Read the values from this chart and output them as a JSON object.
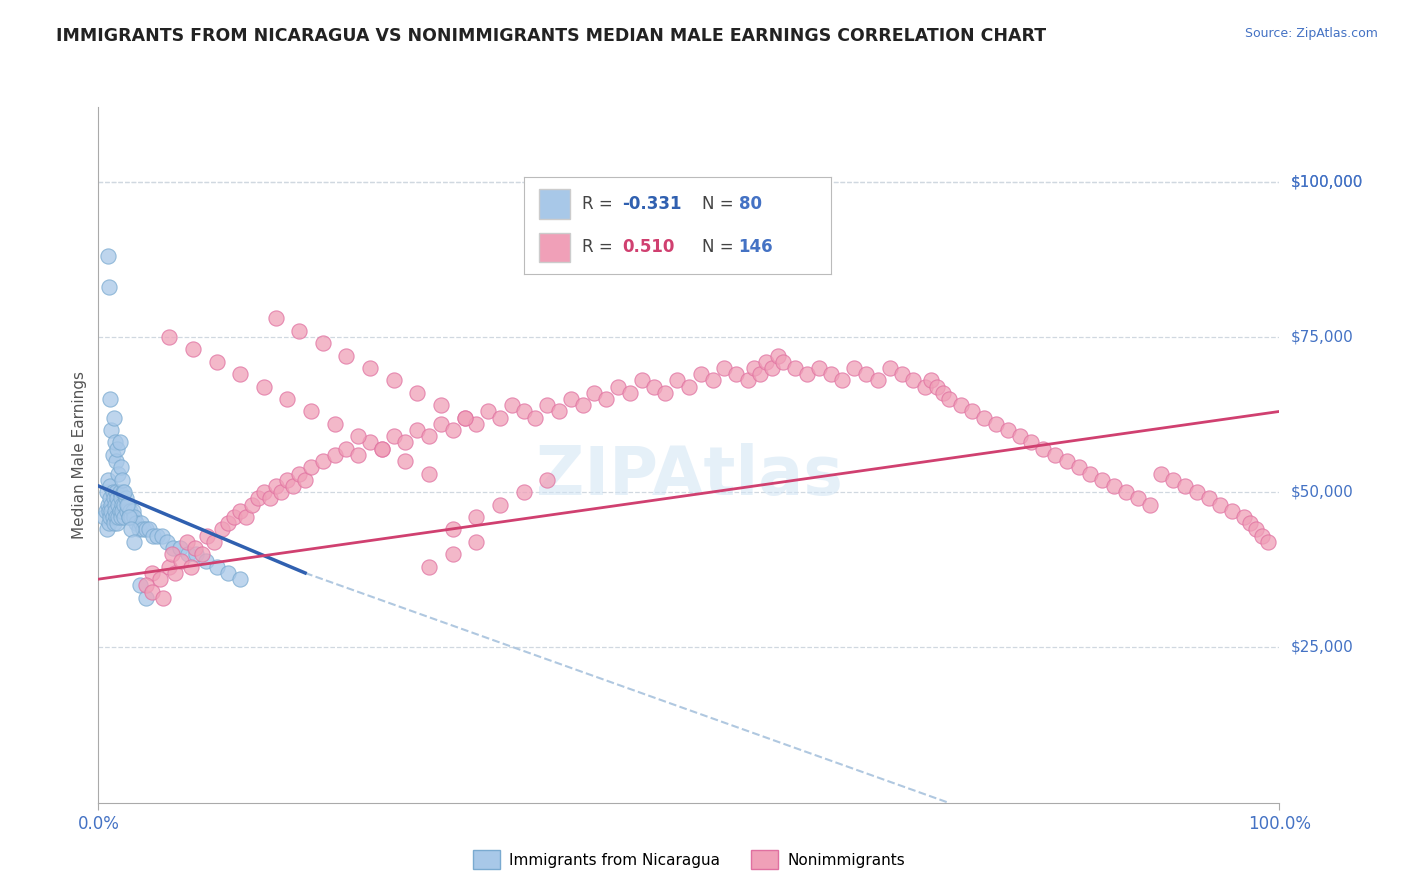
{
  "title": "IMMIGRANTS FROM NICARAGUA VS NONIMMIGRANTS MEDIAN MALE EARNINGS CORRELATION CHART",
  "source_text": "Source: ZipAtlas.com",
  "ylabel": "Median Male Earnings",
  "ytick_values": [
    25000,
    50000,
    75000,
    100000
  ],
  "ytick_labels": [
    "$25,000",
    "$50,000",
    "$75,000",
    "$100,000"
  ],
  "ylim": [
    0,
    112000
  ],
  "xlim": [
    0.0,
    1.0
  ],
  "blue_color": "#a8c8e8",
  "pink_color": "#f0a0b8",
  "blue_edge_color": "#7aaad0",
  "pink_edge_color": "#e070a0",
  "blue_line_color": "#3060b0",
  "pink_line_color": "#d04070",
  "dash_line_color": "#b0c8e0",
  "title_color": "#222222",
  "axis_label_color": "#4472c4",
  "background_color": "#ffffff",
  "grid_color": "#d0d8e0",
  "watermark_color": "#d0e4f4",
  "blue_scatter_x": [
    0.005,
    0.006,
    0.007,
    0.007,
    0.008,
    0.008,
    0.009,
    0.009,
    0.01,
    0.01,
    0.01,
    0.011,
    0.011,
    0.012,
    0.012,
    0.013,
    0.013,
    0.014,
    0.014,
    0.015,
    0.015,
    0.016,
    0.016,
    0.017,
    0.017,
    0.018,
    0.018,
    0.019,
    0.019,
    0.02,
    0.02,
    0.021,
    0.022,
    0.022,
    0.023,
    0.024,
    0.025,
    0.026,
    0.027,
    0.028,
    0.029,
    0.03,
    0.032,
    0.034,
    0.036,
    0.038,
    0.04,
    0.043,
    0.046,
    0.05,
    0.054,
    0.058,
    0.063,
    0.069,
    0.076,
    0.083,
    0.091,
    0.1,
    0.11,
    0.12,
    0.008,
    0.009,
    0.01,
    0.011,
    0.012,
    0.013,
    0.014,
    0.015,
    0.016,
    0.017,
    0.018,
    0.019,
    0.02,
    0.022,
    0.024,
    0.026,
    0.028,
    0.03,
    0.035,
    0.04
  ],
  "blue_scatter_y": [
    46000,
    47000,
    50000,
    44000,
    48000,
    52000,
    47000,
    45000,
    49000,
    51000,
    46000,
    48000,
    47000,
    50000,
    46000,
    49000,
    45000,
    48000,
    47000,
    50000,
    46000,
    49000,
    45000,
    48000,
    46000,
    50000,
    47000,
    49000,
    46000,
    48000,
    47000,
    50000,
    48000,
    46000,
    49000,
    47000,
    48000,
    46000,
    47000,
    46000,
    47000,
    46000,
    45000,
    44000,
    45000,
    44000,
    44000,
    44000,
    43000,
    43000,
    43000,
    42000,
    41000,
    41000,
    40000,
    40000,
    39000,
    38000,
    37000,
    36000,
    88000,
    83000,
    65000,
    60000,
    56000,
    62000,
    58000,
    55000,
    57000,
    53000,
    58000,
    54000,
    52000,
    50000,
    48000,
    46000,
    44000,
    42000,
    35000,
    33000
  ],
  "pink_scatter_x": [
    0.045,
    0.052,
    0.06,
    0.062,
    0.065,
    0.07,
    0.075,
    0.078,
    0.082,
    0.088,
    0.092,
    0.098,
    0.105,
    0.11,
    0.115,
    0.12,
    0.125,
    0.13,
    0.135,
    0.14,
    0.145,
    0.15,
    0.155,
    0.16,
    0.165,
    0.17,
    0.175,
    0.18,
    0.19,
    0.2,
    0.21,
    0.22,
    0.23,
    0.24,
    0.25,
    0.26,
    0.27,
    0.28,
    0.29,
    0.3,
    0.31,
    0.32,
    0.33,
    0.34,
    0.35,
    0.36,
    0.37,
    0.38,
    0.39,
    0.4,
    0.41,
    0.42,
    0.43,
    0.44,
    0.45,
    0.46,
    0.47,
    0.48,
    0.49,
    0.5,
    0.51,
    0.52,
    0.53,
    0.54,
    0.55,
    0.555,
    0.56,
    0.565,
    0.57,
    0.575,
    0.58,
    0.59,
    0.6,
    0.61,
    0.62,
    0.63,
    0.64,
    0.65,
    0.66,
    0.67,
    0.68,
    0.69,
    0.7,
    0.705,
    0.71,
    0.715,
    0.72,
    0.73,
    0.74,
    0.75,
    0.76,
    0.77,
    0.78,
    0.79,
    0.8,
    0.81,
    0.82,
    0.83,
    0.84,
    0.85,
    0.86,
    0.87,
    0.88,
    0.89,
    0.9,
    0.91,
    0.92,
    0.93,
    0.94,
    0.95,
    0.96,
    0.97,
    0.975,
    0.98,
    0.985,
    0.99,
    0.06,
    0.08,
    0.1,
    0.12,
    0.14,
    0.16,
    0.18,
    0.2,
    0.22,
    0.24,
    0.26,
    0.28,
    0.15,
    0.17,
    0.19,
    0.21,
    0.23,
    0.25,
    0.27,
    0.29,
    0.31,
    0.04,
    0.045,
    0.055,
    0.3,
    0.32,
    0.34,
    0.36,
    0.38,
    0.28,
    0.3,
    0.32
  ],
  "pink_scatter_y": [
    37000,
    36000,
    38000,
    40000,
    37000,
    39000,
    42000,
    38000,
    41000,
    40000,
    43000,
    42000,
    44000,
    45000,
    46000,
    47000,
    46000,
    48000,
    49000,
    50000,
    49000,
    51000,
    50000,
    52000,
    51000,
    53000,
    52000,
    54000,
    55000,
    56000,
    57000,
    56000,
    58000,
    57000,
    59000,
    58000,
    60000,
    59000,
    61000,
    60000,
    62000,
    61000,
    63000,
    62000,
    64000,
    63000,
    62000,
    64000,
    63000,
    65000,
    64000,
    66000,
    65000,
    67000,
    66000,
    68000,
    67000,
    66000,
    68000,
    67000,
    69000,
    68000,
    70000,
    69000,
    68000,
    70000,
    69000,
    71000,
    70000,
    72000,
    71000,
    70000,
    69000,
    70000,
    69000,
    68000,
    70000,
    69000,
    68000,
    70000,
    69000,
    68000,
    67000,
    68000,
    67000,
    66000,
    65000,
    64000,
    63000,
    62000,
    61000,
    60000,
    59000,
    58000,
    57000,
    56000,
    55000,
    54000,
    53000,
    52000,
    51000,
    50000,
    49000,
    48000,
    53000,
    52000,
    51000,
    50000,
    49000,
    48000,
    47000,
    46000,
    45000,
    44000,
    43000,
    42000,
    75000,
    73000,
    71000,
    69000,
    67000,
    65000,
    63000,
    61000,
    59000,
    57000,
    55000,
    53000,
    78000,
    76000,
    74000,
    72000,
    70000,
    68000,
    66000,
    64000,
    62000,
    35000,
    34000,
    33000,
    44000,
    46000,
    48000,
    50000,
    52000,
    38000,
    40000,
    42000
  ],
  "blue_trend_x": [
    0.0,
    0.175
  ],
  "blue_trend_y": [
    51000,
    37000
  ],
  "dash_trend_x": [
    0.175,
    0.72
  ],
  "dash_trend_y": [
    37000,
    0
  ],
  "pink_trend_x": [
    0.0,
    1.0
  ],
  "pink_trend_y": [
    36000,
    63000
  ],
  "legend1_label": "Immigrants from Nicaragua",
  "legend2_label": "Nonimmigrants"
}
